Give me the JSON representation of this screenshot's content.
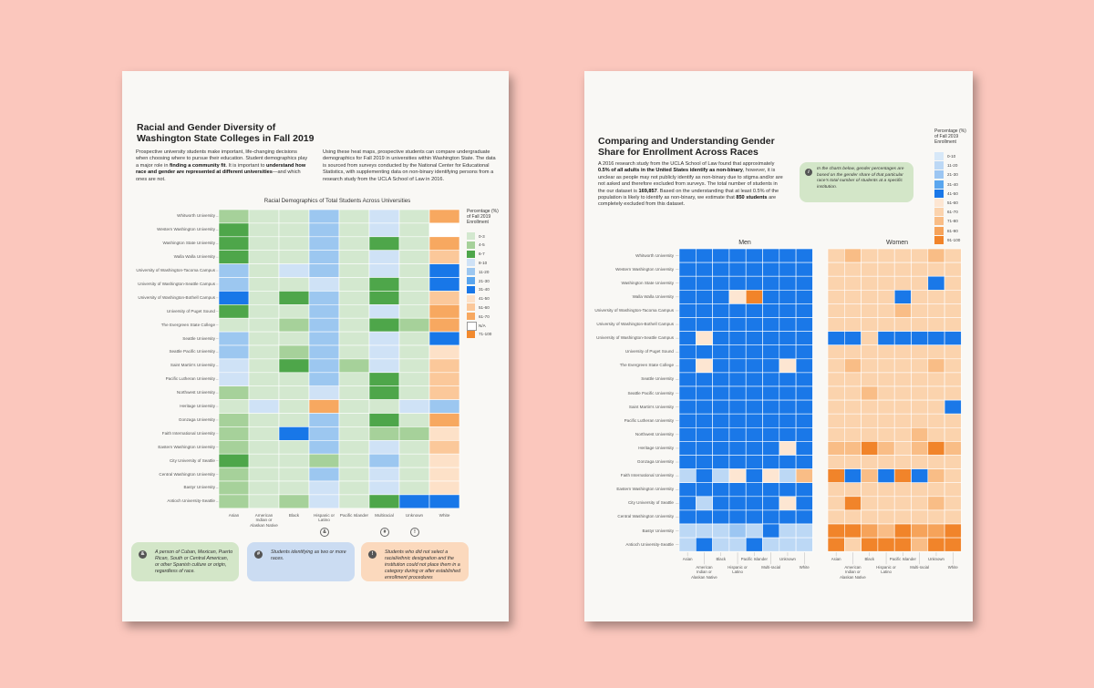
{
  "left": {
    "title_line1": "Racial and Gender Diversity of",
    "title_line2": "Washington State Colleges in Fall 2019",
    "para1": [
      {
        "t": "Prospective university students make important, life-changing decisions when choosing where to pursue their education. Student demographics play a major role in ",
        "b": false
      },
      {
        "t": "finding a community fit",
        "b": true
      },
      {
        "t": ". It is important to ",
        "b": false
      },
      {
        "t": "understand how race and gender are represented at different universities",
        "b": true
      },
      {
        "t": "—and which ones are not.",
        "b": false
      }
    ],
    "para2": "Using these heat maps, prospective students can compare undergraduate demographics for Fall 2019 in universities within Washington State. The data is sourced from surveys conducted by the National Center for Educational Statistics, with supplementing data on non-binary identifying persons from a research study from the UCLA School of Law in 2016.",
    "chart_title": "Racial Demographics of Total Students Across Universities",
    "legend_title": [
      "Percentage (%)",
      "of Fall 2019",
      "Enrollment"
    ],
    "legend": [
      {
        "label": "0-3",
        "color": "#d3e8cf"
      },
      {
        "label": "4-5",
        "color": "#a6d19a"
      },
      {
        "label": "6-7",
        "color": "#4ea64a"
      },
      {
        "label": "8-10",
        "color": "#cfe2f6"
      },
      {
        "label": "11-20",
        "color": "#9cc7f0"
      },
      {
        "label": "21-30",
        "color": "#5aa6ee"
      },
      {
        "label": "31-40",
        "color": "#1877e8"
      },
      {
        "label": "41-50",
        "color": "#fde1c8"
      },
      {
        "label": "51-60",
        "color": "#fbc89a"
      },
      {
        "label": "61-70",
        "color": "#f7a860"
      },
      {
        "label": "N/A",
        "color": "#ffffff"
      },
      {
        "label": "71-100",
        "color": "#f28a2e"
      }
    ],
    "rows": [
      "Whitworth University",
      "Western Washington University",
      "Washington State University",
      "Walla Walla University",
      "University of Washington-Tacoma Campus",
      "University of Washington-Seattle Campus",
      "University of Washington-Bothell Campus",
      "University of Puget Sound",
      "The Evergreen State College",
      "Seattle University",
      "Seattle Pacific University",
      "Saint Martin's University",
      "Pacific Lutheran University",
      "Northwest University",
      "Heritage University",
      "Gonzaga University",
      "Faith International University",
      "Eastern Washington University",
      "City University of Seattle",
      "Central Washington University",
      "Bastyr University",
      "Antioch University-Seattle"
    ],
    "columns": [
      "Asian",
      "American Indian or Alaskan Native",
      "Black",
      "Hispanic or Latino",
      "Pacific Islander",
      "Multiracial",
      "Unknown",
      "White"
    ],
    "column_symbols": [
      "",
      "",
      "",
      "&",
      "",
      "#",
      "!",
      ""
    ],
    "matrix": [
      [
        1,
        0,
        0,
        4,
        0,
        3,
        0,
        9
      ],
      [
        2,
        0,
        0,
        4,
        0,
        3,
        0,
        10
      ],
      [
        2,
        0,
        0,
        4,
        0,
        2,
        0,
        9
      ],
      [
        2,
        0,
        0,
        4,
        0,
        3,
        0,
        8
      ],
      [
        4,
        0,
        3,
        4,
        0,
        3,
        0,
        6
      ],
      [
        4,
        0,
        0,
        3,
        0,
        2,
        0,
        6
      ],
      [
        6,
        0,
        2,
        4,
        0,
        2,
        0,
        8
      ],
      [
        2,
        0,
        0,
        4,
        0,
        3,
        0,
        9
      ],
      [
        0,
        0,
        1,
        4,
        0,
        2,
        1,
        9
      ],
      [
        4,
        0,
        0,
        4,
        0,
        3,
        0,
        6
      ],
      [
        4,
        0,
        1,
        4,
        0,
        3,
        0,
        7
      ],
      [
        3,
        0,
        2,
        4,
        1,
        3,
        0,
        8
      ],
      [
        3,
        0,
        0,
        4,
        0,
        2,
        0,
        8
      ],
      [
        1,
        0,
        0,
        3,
        0,
        2,
        0,
        8
      ],
      [
        0,
        3,
        0,
        9,
        0,
        0,
        3,
        4
      ],
      [
        1,
        0,
        0,
        4,
        0,
        2,
        0,
        9
      ],
      [
        1,
        0,
        6,
        4,
        0,
        1,
        1,
        7
      ],
      [
        1,
        0,
        0,
        4,
        0,
        3,
        0,
        8
      ],
      [
        2,
        0,
        0,
        1,
        0,
        4,
        0,
        7
      ],
      [
        1,
        0,
        0,
        4,
        0,
        3,
        0,
        7
      ],
      [
        1,
        0,
        0,
        3,
        0,
        3,
        0,
        7
      ],
      [
        1,
        0,
        1,
        3,
        0,
        2,
        6,
        6
      ]
    ],
    "notes": [
      {
        "sym": "&",
        "text": "A person of Cuban, Mexican, Puerto Rican, South or Central American, or other Spanish culture or origin, regardless of race.",
        "color": "#d3e6c8"
      },
      {
        "sym": "#",
        "text": "Students identifying as two or more races.",
        "color": "#cbdcf2"
      },
      {
        "sym": "!",
        "text": "Students who did not select a racial/ethnic designation and the institution could not place them in a category during or after established enrollment procedures",
        "color": "#fbd9bd"
      }
    ]
  },
  "right": {
    "title_line1": "Comparing and Understanding Gender",
    "title_line2": "Share for Enrollment Across Races",
    "para": [
      {
        "t": "A 2016 research study from the UCLA School of Law found that approximately ",
        "b": false
      },
      {
        "t": "0.5% of all adults in the United States identify as non-binary",
        "b": true
      },
      {
        "t": ", however, it is unclear as people may not publicly identify as non-binary due to stigma and/or are not asked and therefore excluded from surveys. The total number of students in the our dataset is ",
        "b": false
      },
      {
        "t": "169,857",
        "b": true
      },
      {
        "t": ". Based on the understanding that at least 0.5% of the population is likely to identify as non-binary, we estimate that ",
        "b": false
      },
      {
        "t": "850 students",
        "b": true
      },
      {
        "t": " are completely excluded from this dataset.",
        "b": false
      }
    ],
    "info_text": "In the charts below, gender percentages are based on the gender share of that particular race's total number of students at a specific institution.",
    "legend_title": [
      "Percentage (%)",
      "of Fall 2019",
      "Enrollment"
    ],
    "legend": [
      {
        "label": "0-10",
        "color": "#d7e8f8"
      },
      {
        "label": "11-20",
        "color": "#bcd8f5"
      },
      {
        "label": "21-30",
        "color": "#9cc6f2"
      },
      {
        "label": "31-40",
        "color": "#5aa6ee"
      },
      {
        "label": "41-50",
        "color": "#1a78e8"
      },
      {
        "label": "51-60",
        "color": "#fde6d2"
      },
      {
        "label": "61-70",
        "color": "#fbd3ad"
      },
      {
        "label": "71-80",
        "color": "#f9bd86"
      },
      {
        "label": "81-90",
        "color": "#f6a35a"
      },
      {
        "label": "91-100",
        "color": "#f1842a"
      }
    ],
    "men_title": "Men",
    "women_title": "Women",
    "rows": [
      "Whitworth University",
      "Western Washington University",
      "Washington State University",
      "Walla Walla University",
      "University of Washington-Tacoma Campus",
      "University of Washington-Bothell Campus",
      "University of Washington-Seattle Campus",
      "University of Puget Sound",
      "The Evergreen State College",
      "Seattle University",
      "Seattle Pacific University",
      "Saint Martin's University",
      "Pacific Lutheran University",
      "Northwest University",
      "Heritage University",
      "Gonzaga University",
      "Faith International University",
      "Eastern Washington University",
      "City University of Seattle",
      "Central Washington University",
      "Bastyr University",
      "Antioch University-Seattle"
    ],
    "columns": [
      "Asian",
      "American Indian or Alaskan Native",
      "Black",
      "Hispanic or Latino",
      "Pacific Islander",
      "Multi-racial",
      "Unknown",
      "White"
    ],
    "men": [
      [
        4,
        4,
        4,
        4,
        4,
        4,
        4,
        4
      ],
      [
        4,
        4,
        4,
        4,
        4,
        4,
        4,
        4
      ],
      [
        4,
        4,
        4,
        4,
        4,
        4,
        4,
        4
      ],
      [
        4,
        4,
        4,
        5,
        9,
        4,
        4,
        4
      ],
      [
        4,
        4,
        4,
        4,
        4,
        4,
        4,
        4
      ],
      [
        4,
        4,
        4,
        4,
        4,
        4,
        4,
        4
      ],
      [
        4,
        5,
        4,
        4,
        4,
        4,
        4,
        4
      ],
      [
        4,
        4,
        4,
        4,
        4,
        4,
        4,
        4
      ],
      [
        4,
        5,
        4,
        4,
        4,
        4,
        5,
        4
      ],
      [
        4,
        4,
        4,
        4,
        4,
        4,
        4,
        4
      ],
      [
        4,
        4,
        4,
        4,
        4,
        4,
        4,
        4
      ],
      [
        4,
        4,
        4,
        4,
        4,
        4,
        4,
        4
      ],
      [
        4,
        4,
        4,
        4,
        4,
        4,
        4,
        4
      ],
      [
        4,
        4,
        4,
        4,
        4,
        4,
        4,
        4
      ],
      [
        4,
        4,
        4,
        4,
        4,
        4,
        5,
        4
      ],
      [
        4,
        4,
        4,
        4,
        4,
        4,
        4,
        4
      ],
      [
        1,
        4,
        1,
        5,
        4,
        5,
        1,
        7
      ],
      [
        4,
        4,
        4,
        4,
        4,
        4,
        4,
        4
      ],
      [
        4,
        1,
        4,
        4,
        4,
        4,
        5,
        4
      ],
      [
        4,
        4,
        4,
        4,
        4,
        4,
        4,
        4
      ],
      [
        1,
        1,
        1,
        2,
        1,
        4,
        1,
        1
      ],
      [
        1,
        4,
        1,
        1,
        4,
        1,
        1,
        1
      ]
    ],
    "women": [
      [
        6,
        7,
        6,
        6,
        6,
        6,
        7,
        6
      ],
      [
        6,
        6,
        6,
        6,
        6,
        6,
        6,
        6
      ],
      [
        6,
        6,
        6,
        6,
        6,
        6,
        4,
        6
      ],
      [
        6,
        6,
        6,
        6,
        4,
        6,
        6,
        6
      ],
      [
        6,
        6,
        6,
        6,
        7,
        6,
        6,
        6
      ],
      [
        6,
        6,
        6,
        6,
        6,
        6,
        6,
        6
      ],
      [
        4,
        4,
        6,
        4,
        4,
        4,
        4,
        4
      ],
      [
        6,
        6,
        6,
        6,
        6,
        6,
        6,
        6
      ],
      [
        6,
        7,
        6,
        6,
        6,
        6,
        7,
        6
      ],
      [
        6,
        6,
        6,
        6,
        6,
        6,
        6,
        6
      ],
      [
        6,
        6,
        7,
        6,
        6,
        6,
        6,
        6
      ],
      [
        6,
        6,
        6,
        6,
        6,
        6,
        6,
        4
      ],
      [
        6,
        6,
        6,
        6,
        6,
        6,
        6,
        6
      ],
      [
        6,
        6,
        6,
        6,
        6,
        7,
        6,
        6
      ],
      [
        7,
        7,
        9,
        7,
        6,
        7,
        9,
        7
      ],
      [
        6,
        6,
        6,
        6,
        6,
        6,
        6,
        6
      ],
      [
        9,
        4,
        7,
        4,
        9,
        4,
        7,
        6
      ],
      [
        6,
        6,
        6,
        6,
        6,
        6,
        6,
        6
      ],
      [
        6,
        9,
        6,
        6,
        6,
        6,
        7,
        6
      ],
      [
        6,
        6,
        6,
        6,
        6,
        6,
        6,
        6
      ],
      [
        9,
        9,
        8,
        7,
        9,
        8,
        8,
        9
      ],
      [
        9,
        6,
        9,
        9,
        9,
        7,
        9,
        9
      ]
    ]
  }
}
